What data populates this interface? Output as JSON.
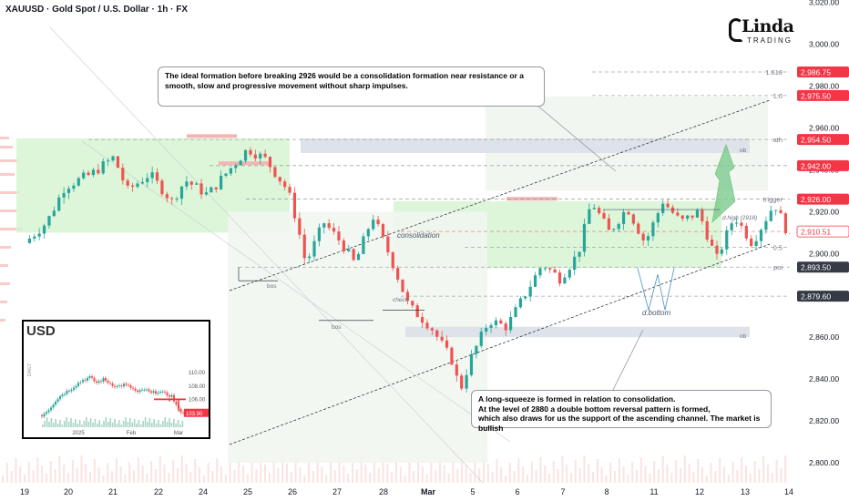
{
  "header": {
    "title": "XAUUSD · Gold Spot / U.S. Dollar · 1h · FX"
  },
  "logo": {
    "main": "Linda",
    "sub": "TRADING"
  },
  "notes": {
    "top": "The ideal formation before breaking 2926 would be a consolidation formation near resistance or a smooth, slow and progressive movement without sharp impulses.",
    "bottom_lines": [
      "A long-squeeze is formed in relation to consolidation.",
      "At the level of 2880 a double bottom reversal pattern is formed,",
      "which also draws for us the support of the ascending channel. The market is bullish"
    ]
  },
  "annotations": {
    "consolidation": "consolidation",
    "dbottom": "d.bottom",
    "dhigh": "d.high (2918)",
    "choch": "chech",
    "bos1": "bos",
    "bos2": "bos",
    "ob1": "ob",
    "ob2": "ob",
    "fib_1618": "1.618",
    "fib_1": "1.0",
    "level_ath": "ath",
    "level_trigger": "trigger",
    "level_half": "0.5",
    "level_poi": "poi"
  },
  "colors": {
    "up": "#26a69a",
    "down": "#ef5350",
    "red_label": "#f23645",
    "dark_label": "#363a45",
    "zone_green": "#d5f2cf",
    "zone_grey": "#dde3e8"
  },
  "chart_data": {
    "type": "candlestick",
    "symbol": "XAUUSD",
    "timeframe": "1h",
    "ylim": [
      2792,
      3020
    ],
    "y_ticks": [
      "2,800.00",
      "2,820.00",
      "2,840.00",
      "2,860.00",
      "2,880.00",
      "2,900.00",
      "2,920.00",
      "2,940.00",
      "2,960.00",
      "2,980.00",
      "3,000.00",
      "3,020.00"
    ],
    "x_ticks": [
      "19",
      "20",
      "21",
      "22",
      "24",
      "25",
      "26",
      "27",
      "28",
      "Mar",
      "5",
      "6",
      "7",
      "8",
      "11",
      "12",
      "13",
      "14"
    ],
    "price_labels": [
      {
        "text": "2,986.75",
        "value": 2986.75,
        "style": "red"
      },
      {
        "text": "2,975.50",
        "value": 2975.5,
        "style": "red"
      },
      {
        "text": "2,954.50",
        "value": 2954.5,
        "style": "red"
      },
      {
        "text": "2,942.00",
        "value": 2942,
        "style": "red"
      },
      {
        "text": "2,926.00",
        "value": 2926,
        "style": "red"
      },
      {
        "text": "2,910.51",
        "value": 2910.51,
        "style": "outline"
      },
      {
        "text": "2,893.50",
        "value": 2893.5,
        "style": "dark"
      },
      {
        "text": "2,879.60",
        "value": 2879.6,
        "style": "dark"
      }
    ],
    "path_points": [
      {
        "t": 0,
        "p": 2905
      },
      {
        "t": 0.5,
        "p": 2915
      },
      {
        "t": 0.9,
        "p": 2932
      },
      {
        "t": 1.5,
        "p": 2938
      },
      {
        "t": 2.0,
        "p": 2946
      },
      {
        "t": 2.3,
        "p": 2930
      },
      {
        "t": 2.8,
        "p": 2938
      },
      {
        "t": 3.3,
        "p": 2925
      },
      {
        "t": 3.6,
        "p": 2935
      },
      {
        "t": 4.1,
        "p": 2928
      },
      {
        "t": 4.5,
        "p": 2938
      },
      {
        "t": 5.0,
        "p": 2950
      },
      {
        "t": 5.4,
        "p": 2945
      },
      {
        "t": 5.9,
        "p": 2930
      },
      {
        "t": 6.1,
        "p": 2915
      },
      {
        "t": 6.3,
        "p": 2895
      },
      {
        "t": 6.7,
        "p": 2915
      },
      {
        "t": 7.1,
        "p": 2905
      },
      {
        "t": 7.4,
        "p": 2895
      },
      {
        "t": 7.8,
        "p": 2918
      },
      {
        "t": 8.2,
        "p": 2898
      },
      {
        "t": 8.6,
        "p": 2875
      },
      {
        "t": 9.1,
        "p": 2865
      },
      {
        "t": 9.6,
        "p": 2848
      },
      {
        "t": 9.75,
        "p": 2834
      },
      {
        "t": 10.0,
        "p": 2850
      },
      {
        "t": 10.4,
        "p": 2868
      },
      {
        "t": 10.8,
        "p": 2865
      },
      {
        "t": 11.2,
        "p": 2880
      },
      {
        "t": 11.6,
        "p": 2895
      },
      {
        "t": 12.0,
        "p": 2888
      },
      {
        "t": 12.4,
        "p": 2900
      },
      {
        "t": 12.7,
        "p": 2925
      },
      {
        "t": 13.1,
        "p": 2910
      },
      {
        "t": 13.5,
        "p": 2922
      },
      {
        "t": 13.9,
        "p": 2905
      },
      {
        "t": 14.3,
        "p": 2925
      },
      {
        "t": 14.7,
        "p": 2915
      },
      {
        "t": 15.1,
        "p": 2920
      },
      {
        "t": 15.5,
        "p": 2897
      },
      {
        "t": 15.9,
        "p": 2918
      },
      {
        "t": 16.3,
        "p": 2905
      },
      {
        "t": 16.8,
        "p": 2924
      },
      {
        "t": 17.2,
        "p": 2905
      },
      {
        "t": 17.6,
        "p": 2912
      },
      {
        "t": 18.0,
        "p": 2905
      },
      {
        "t": 18.3,
        "p": 2892
      },
      {
        "t": 18.6,
        "p": 2880
      },
      {
        "t": 18.9,
        "p": 2886
      },
      {
        "t": 19.2,
        "p": 2893
      },
      {
        "t": 19.5,
        "p": 2910
      }
    ],
    "projection": [
      {
        "t": 19.5,
        "p": 2910
      },
      {
        "t": 19.9,
        "p": 2925
      },
      {
        "t": 20.2,
        "p": 2905
      },
      {
        "t": 20.55,
        "p": 2921
      },
      {
        "t": 20.8,
        "p": 2915
      },
      {
        "t": 21.3,
        "p": 2952
      }
    ],
    "levels": [
      {
        "name": "1.618",
        "value": 2986.75
      },
      {
        "name": "1.0",
        "value": 2975.5
      },
      {
        "name": "ath",
        "value": 2954.5
      },
      {
        "name": "",
        "value": 2942
      },
      {
        "name": "trigger",
        "value": 2926
      },
      {
        "name": "",
        "value": 2910.51
      },
      {
        "name": "0.5",
        "value": 2903
      },
      {
        "name": "poi",
        "value": 2893.5
      },
      {
        "name": "",
        "value": 2879.6
      }
    ],
    "inset": {
      "title": "USD",
      "side_label": "DAILY",
      "y_ticks": [
        "110.00",
        "108.00",
        "106.00",
        "104.00"
      ],
      "x_ticks": [
        "2025",
        "Feb",
        "Mar"
      ],
      "last_label": "103.90",
      "path": [
        103.6,
        104.5,
        105.8,
        106.8,
        107.4,
        108.2,
        108.9,
        109.3,
        108.5,
        109.0,
        108.4,
        107.9,
        108.2,
        107.8,
        107.0,
        107.5,
        106.9,
        107.2,
        106.8,
        106.5,
        104.4,
        103.9
      ]
    }
  }
}
